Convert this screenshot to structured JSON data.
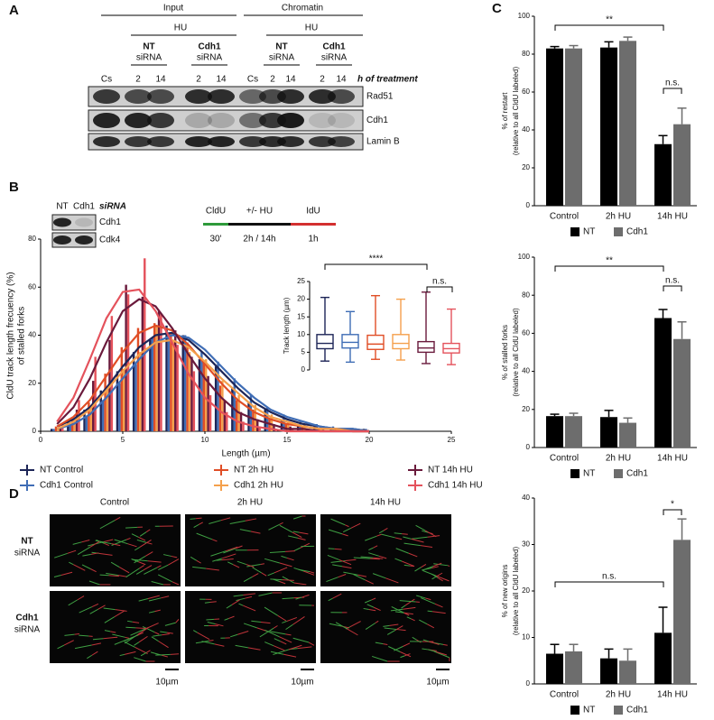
{
  "panel_a": {
    "label": "A",
    "input": {
      "title": "Input",
      "treatment": "HU",
      "samples": [
        {
          "name": "NT",
          "sub": "siRNA"
        },
        {
          "name": "Cdh1",
          "sub": "siRNA"
        }
      ]
    },
    "chromatin": {
      "title": "Chromatin",
      "treatment": "HU",
      "samples": [
        {
          "name": "NT",
          "sub": "siRNA"
        },
        {
          "name": "Cdh1",
          "sub": "siRNA"
        }
      ]
    },
    "lanes": [
      "Cs",
      "2",
      "14",
      "2",
      "14",
      "Cs",
      "2",
      "14",
      "2",
      "14"
    ],
    "lane_note": "h of treatment",
    "rows": [
      "Rad51",
      "Cdh1",
      "Lamin B"
    ]
  },
  "panel_b": {
    "label": "B",
    "blot": {
      "lanes": [
        "NT",
        "Cdh1"
      ],
      "note": "siRNA",
      "rows": [
        "Cdh1",
        "Cdk4"
      ]
    },
    "scheme": [
      {
        "name": "CldU",
        "time": "30'"
      },
      {
        "name": "+/- HU",
        "time": "2h / 14h"
      },
      {
        "name": "IdU",
        "time": "1h"
      }
    ]
  },
  "panel_c": {
    "label": "C"
  },
  "panel_d": {
    "label": "D",
    "columns": [
      "Control",
      "2h HU",
      "14h HU"
    ],
    "rows": [
      {
        "name": "NT",
        "sub": "siRNA"
      },
      {
        "name": "Cdh1",
        "sub": "siRNA"
      }
    ],
    "scale_bars": [
      "10µm",
      "10µm",
      "10µm"
    ]
  },
  "chart_data": [
    {
      "type": "histogram",
      "xlabel": "Length (µm)",
      "ylabel": [
        "CldU track length frecuency (%)",
        "of stalled forks"
      ],
      "x": [
        1,
        2,
        3,
        4,
        5,
        6,
        7,
        8,
        9,
        10,
        11,
        12,
        13,
        14,
        15,
        16,
        17,
        18,
        19,
        20
      ],
      "xlim": [
        0,
        25
      ],
      "xticks": [
        0,
        5,
        10,
        15,
        20,
        25
      ],
      "ylim": [
        0,
        80
      ],
      "yticks": [
        0,
        20,
        40,
        60,
        80
      ],
      "series": [
        {
          "name": "NT Control",
          "color": "#1d2557",
          "values": [
            1,
            4,
            9,
            17,
            25,
            33,
            38,
            44,
            40,
            30,
            27,
            18,
            12,
            9,
            5,
            3,
            2,
            1,
            1,
            1
          ],
          "fit_values": [
            2,
            5,
            10,
            18,
            27,
            35,
            40,
            41,
            38,
            32,
            25,
            18,
            12,
            8,
            5,
            3,
            2,
            1,
            1,
            0
          ]
        },
        {
          "name": "Cdh1 Control",
          "color": "#3f6db5",
          "values": [
            1,
            3,
            6,
            13,
            20,
            28,
            39,
            41,
            40,
            33,
            29,
            22,
            15,
            10,
            7,
            4,
            3,
            2,
            1,
            1
          ],
          "fit_values": [
            1,
            3,
            7,
            14,
            22,
            30,
            37,
            40,
            39,
            34,
            27,
            20,
            14,
            9,
            6,
            4,
            2,
            1,
            1,
            0
          ]
        },
        {
          "name": "NT 2h HU",
          "color": "#e04e26",
          "values": [
            2,
            5,
            12,
            24,
            35,
            43,
            45,
            41,
            37,
            29,
            19,
            13,
            9,
            5,
            3,
            2,
            1,
            1,
            1,
            0
          ],
          "fit_values": [
            2,
            6,
            13,
            23,
            33,
            41,
            44,
            42,
            36,
            28,
            20,
            13,
            8,
            5,
            3,
            2,
            1,
            1,
            0,
            0
          ]
        },
        {
          "name": "Cdh1 2h HU",
          "color": "#f4a04c",
          "values": [
            1,
            4,
            10,
            18,
            26,
            33,
            44,
            38,
            33,
            30,
            21,
            15,
            11,
            7,
            4,
            3,
            2,
            1,
            1,
            0
          ],
          "fit_values": [
            1,
            4,
            9,
            17,
            25,
            32,
            37,
            38,
            35,
            29,
            22,
            16,
            10,
            6,
            4,
            2,
            1,
            1,
            0,
            0
          ]
        },
        {
          "name": "NT 14h HU",
          "color": "#6a1a3c",
          "values": [
            2,
            9,
            21,
            38,
            61,
            56,
            50,
            42,
            31,
            23,
            13,
            8,
            5,
            3,
            2,
            1,
            1,
            0,
            0,
            0
          ],
          "fit_values": [
            3,
            10,
            22,
            37,
            50,
            55,
            52,
            43,
            32,
            22,
            14,
            8,
            5,
            3,
            1,
            1,
            0,
            0,
            0,
            0
          ]
        },
        {
          "name": "Cdh1 14h HU",
          "color": "#e4525c",
          "values": [
            3,
            13,
            31,
            48,
            57,
            72,
            49,
            36,
            25,
            15,
            8,
            4,
            2,
            1,
            1,
            0,
            0,
            0,
            0,
            0
          ],
          "fit_values": [
            4,
            14,
            30,
            47,
            58,
            59,
            50,
            37,
            24,
            14,
            8,
            4,
            2,
            1,
            0,
            0,
            0,
            0,
            0,
            0
          ]
        }
      ]
    },
    {
      "type": "box",
      "ylabel": "Track length (µm)",
      "ylim": [
        0,
        25
      ],
      "yticks": [
        0,
        5,
        10,
        15,
        20,
        25
      ],
      "series": [
        {
          "color": "#1d2557",
          "min": 2.5,
          "q1": 6,
          "median": 7.5,
          "q3": 10,
          "max": 20.5
        },
        {
          "color": "#3f6db5",
          "min": 2.2,
          "q1": 6.2,
          "median": 7.8,
          "q3": 10,
          "max": 16.5
        },
        {
          "color": "#e04e26",
          "min": 3,
          "q1": 5.8,
          "median": 7.3,
          "q3": 9.8,
          "max": 21
        },
        {
          "color": "#f4a04c",
          "min": 2.8,
          "q1": 6,
          "median": 7.5,
          "q3": 10,
          "max": 20
        },
        {
          "color": "#6a1a3c",
          "min": 1.8,
          "q1": 5,
          "median": 6.2,
          "q3": 8,
          "max": 22
        },
        {
          "color": "#e4525c",
          "min": 1.5,
          "q1": 4.8,
          "median": 6,
          "q3": 7.5,
          "max": 17.2
        }
      ],
      "annotations": [
        "****",
        "n.s."
      ]
    },
    {
      "type": "bar",
      "ylabel": [
        "% of restart",
        "(relative to all CldU labeled)"
      ],
      "categories": [
        "Control",
        "2h HU",
        "14h HU"
      ],
      "ylim": [
        0,
        100
      ],
      "yticks": [
        0,
        20,
        40,
        60,
        80,
        100
      ],
      "legend": "bottom",
      "series": [
        {
          "name": "NT",
          "color": "#000000",
          "values": [
            83,
            83.5,
            32.5
          ],
          "errors": [
            1,
            3,
            4.5
          ]
        },
        {
          "name": "Cdh1",
          "color": "#6d6d6d",
          "values": [
            83,
            87,
            43
          ],
          "errors": [
            1.5,
            2,
            8.5
          ]
        }
      ],
      "annotations": [
        "**",
        "n.s."
      ]
    },
    {
      "type": "bar",
      "ylabel": [
        "% of stalled forks",
        "(relative to all CldU labeled)"
      ],
      "categories": [
        "Control",
        "2h HU",
        "14h HU"
      ],
      "ylim": [
        0,
        100
      ],
      "yticks": [
        0,
        20,
        40,
        60,
        80,
        100
      ],
      "legend": "bottom",
      "series": [
        {
          "name": "NT",
          "color": "#000000",
          "values": [
            16.5,
            16,
            68
          ],
          "errors": [
            1,
            3.5,
            4.5
          ]
        },
        {
          "name": "Cdh1",
          "color": "#6d6d6d",
          "values": [
            16.5,
            13,
            57
          ],
          "errors": [
            1.5,
            2.5,
            9
          ]
        }
      ],
      "annotations": [
        "**",
        "n.s."
      ]
    },
    {
      "type": "bar",
      "ylabel": [
        "% of new origins",
        "(relative to all CldU labeled)"
      ],
      "categories": [
        "Control",
        "2h HU",
        "14h HU"
      ],
      "ylim": [
        0,
        40
      ],
      "yticks": [
        0,
        10,
        20,
        30,
        40
      ],
      "legend": "bottom",
      "series": [
        {
          "name": "NT",
          "color": "#000000",
          "values": [
            6.5,
            5.5,
            11
          ],
          "errors": [
            2,
            2,
            5.5
          ]
        },
        {
          "name": "Cdh1",
          "color": "#6d6d6d",
          "values": [
            7,
            5,
            31
          ],
          "errors": [
            1.5,
            2.5,
            4.5
          ]
        }
      ],
      "annotations": [
        "n.s.",
        "*"
      ]
    }
  ]
}
